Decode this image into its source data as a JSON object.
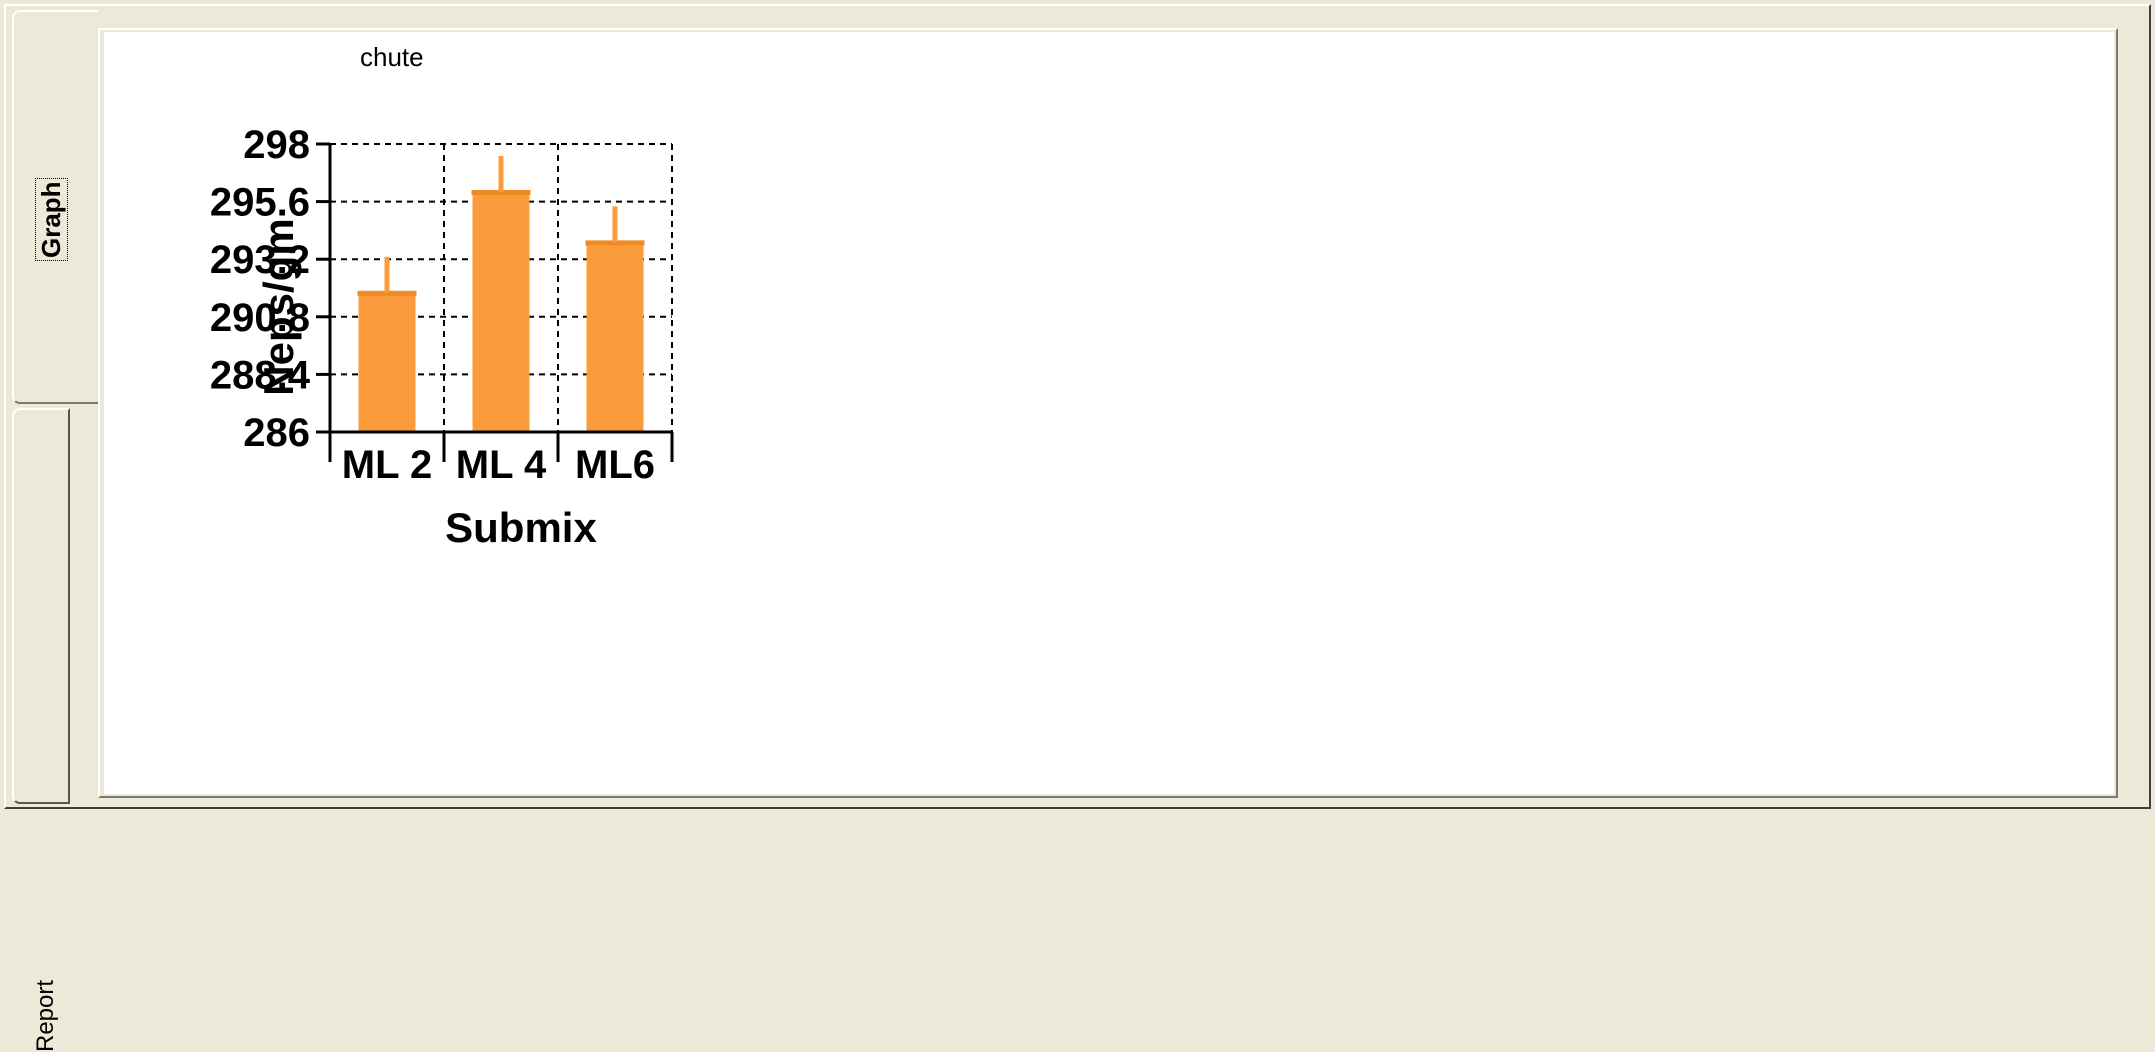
{
  "tabs": [
    {
      "label": "Graph",
      "selected": true
    },
    {
      "label": "Report",
      "selected": false
    }
  ],
  "colors": {
    "bar": "#fa9c3c",
    "grid": "#000000",
    "background": "#ffffff",
    "window": "#ece9d8"
  },
  "chart_data": {
    "type": "bar",
    "title": "chute",
    "xlabel": "Submix",
    "ylabel": "Neps/gm",
    "categories": [
      "ML 2",
      "ML 4",
      "ML6"
    ],
    "values": [
      291.8,
      296.0,
      293.9
    ],
    "error_upper": [
      293.3,
      297.5,
      295.4
    ],
    "ylim": [
      286,
      298
    ],
    "yticks": [
      "298",
      "295.6",
      "293.2",
      "290.8",
      "288.4",
      "286"
    ],
    "ytick_values": [
      298,
      295.6,
      293.2,
      290.8,
      288.4,
      286
    ],
    "grid": true,
    "legend": "none"
  }
}
